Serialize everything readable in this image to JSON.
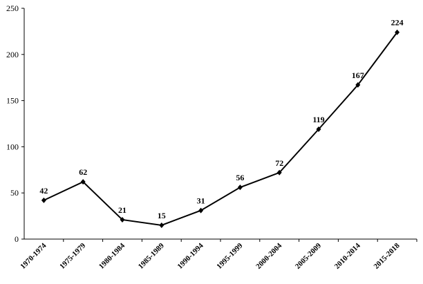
{
  "chart_data": {
    "type": "line",
    "categories": [
      "1970-1974",
      "1975-1979",
      "1980-1984",
      "1985-1989",
      "1990-1994",
      "1995-1999",
      "2000-2004",
      "2005-2009",
      "2010-2014",
      "2015-2018"
    ],
    "values": [
      42,
      62,
      21,
      15,
      31,
      56,
      72,
      119,
      167,
      224
    ],
    "color": "#000000",
    "ylim": [
      0,
      250
    ],
    "yticks": [
      0,
      50,
      100,
      150,
      200,
      250
    ],
    "grid": false
  }
}
